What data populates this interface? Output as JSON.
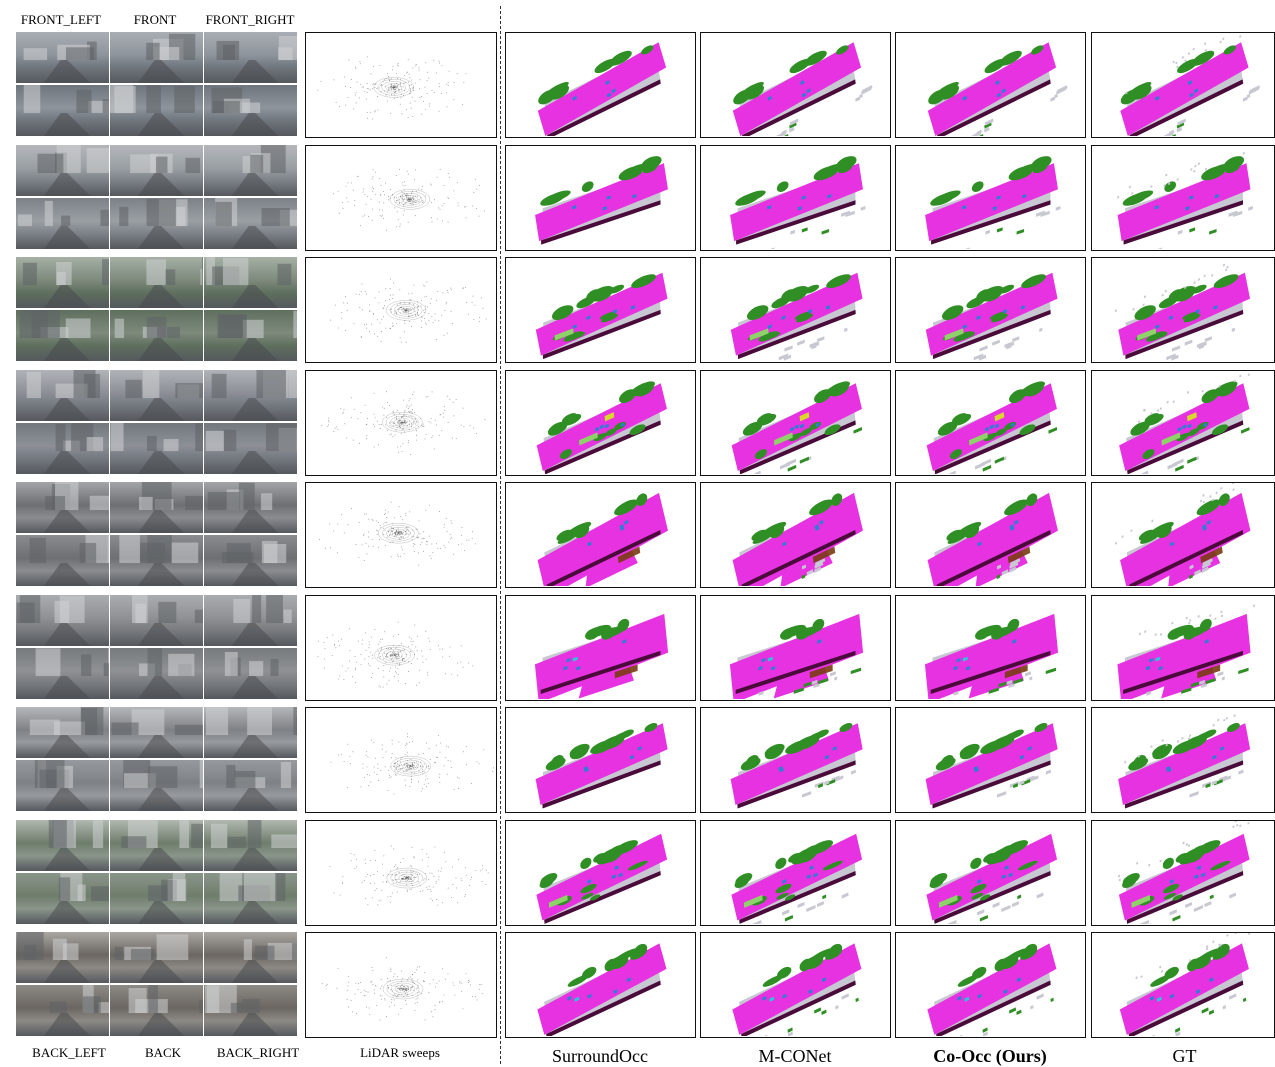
{
  "camera_labels_top": [
    "FRONT_LEFT",
    "FRONT",
    "FRONT_RIGHT"
  ],
  "camera_labels_bottom": [
    "BACK_LEFT",
    "BACK",
    "BACK_RIGHT"
  ],
  "lidar_label": "LiDAR sweeps",
  "method_labels": [
    "SurroundOcc",
    "M-CONet",
    "Co-Occ (Ours)",
    "GT"
  ],
  "rows": 9,
  "scene_palette": {
    "road": "#e632e0",
    "vegetation": "#2f8f24",
    "manmade": "#c8c8d2",
    "sidewalk": "#4a0a3a",
    "car": "#2a7fd6",
    "terrain": "#8fd26a",
    "truck": "#d9d92a",
    "barrier": "#7a3a12",
    "cone": "#e07a2a",
    "ped": "#28c8d8"
  }
}
